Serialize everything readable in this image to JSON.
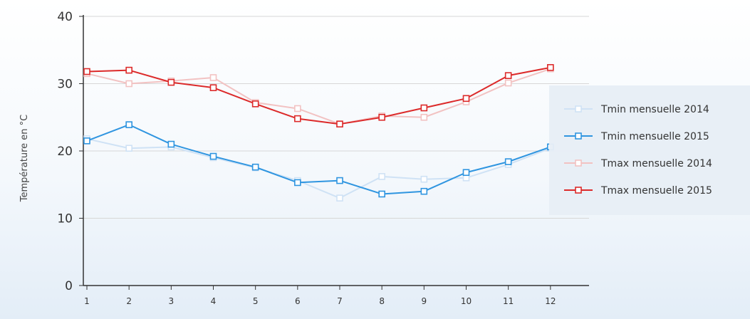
{
  "chart_data": {
    "type": "line",
    "title": "",
    "xlabel": "",
    "ylabel": "Température en °C",
    "x": [
      1,
      2,
      3,
      4,
      5,
      6,
      7,
      8,
      9,
      10,
      11,
      12
    ],
    "xlim": [
      1,
      13
    ],
    "ylim": [
      0,
      40
    ],
    "yticks": [
      0,
      10,
      20,
      30,
      40
    ],
    "grid": "horizontal",
    "legend_position": "right",
    "series": [
      {
        "name": "Tmin mensuelle 2014",
        "color": "#cfe2f5",
        "values": [
          21.8,
          20.4,
          20.6,
          19.0,
          17.5,
          15.6,
          13.0,
          16.2,
          15.8,
          16.0,
          18.0,
          20.4
        ]
      },
      {
        "name": "Tmin mensuelle 2015",
        "color": "#2f95e0",
        "values": [
          21.5,
          23.9,
          21.0,
          19.2,
          17.6,
          15.3,
          15.6,
          13.6,
          14.0,
          16.8,
          18.4,
          20.6
        ]
      },
      {
        "name": "Tmax mensuelle 2014",
        "color": "#f2c2c2",
        "values": [
          31.5,
          30.0,
          30.4,
          30.9,
          27.2,
          26.3,
          24.0,
          25.2,
          25.0,
          27.3,
          30.1,
          32.2
        ]
      },
      {
        "name": "Tmax mensuelle 2015",
        "color": "#dc2a2a",
        "values": [
          31.8,
          32.0,
          30.2,
          29.4,
          27.0,
          24.8,
          24.0,
          25.0,
          26.4,
          27.8,
          31.2,
          32.4
        ]
      }
    ]
  }
}
